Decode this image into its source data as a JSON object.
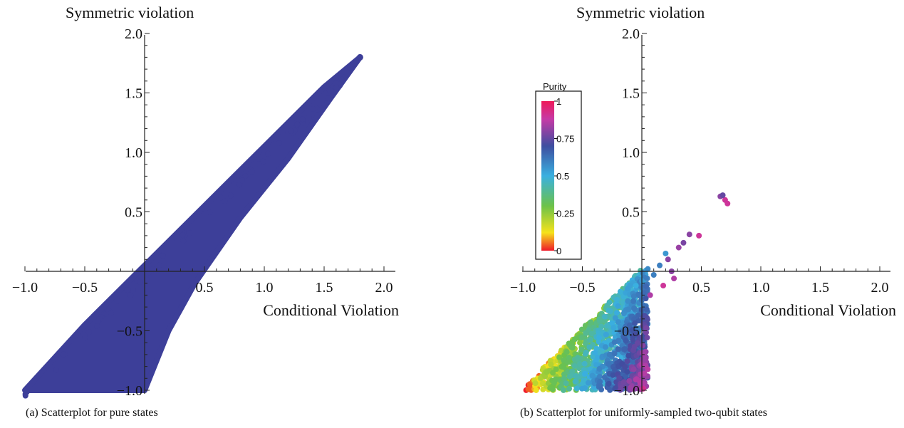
{
  "chart_data": [
    {
      "type": "scatter",
      "caption": "(a) Scatterplot for pure states",
      "xlabel": "Conditional Violation",
      "ylabel": "Symmetric violation",
      "xlim": [
        -1.0,
        2.0
      ],
      "ylim": [
        -1.0,
        2.0
      ],
      "xticks": [
        "−1.0",
        "−0.5",
        "0.5",
        "1.0",
        "1.5",
        "2.0"
      ],
      "yticks": [
        "−1.0",
        "−0.5",
        "0.5",
        "1.0",
        "1.5",
        "2.0"
      ],
      "point_color": "#3d3f99",
      "region": {
        "description_points_boundary": [
          [
            -1.0,
            -1.0
          ],
          [
            -0.95,
            -1.0
          ],
          [
            0.0,
            -1.0
          ],
          [
            0.2,
            -0.5
          ],
          [
            0.42,
            -0.1
          ],
          [
            0.8,
            0.45
          ],
          [
            1.2,
            0.95
          ],
          [
            1.55,
            1.45
          ],
          [
            1.8,
            1.8
          ],
          [
            1.5,
            1.55
          ],
          [
            1.0,
            1.05
          ],
          [
            0.5,
            0.55
          ],
          [
            0.0,
            0.05
          ],
          [
            -0.5,
            -0.45
          ],
          [
            -1.0,
            -1.0
          ]
        ]
      },
      "outliers": [
        [
          1.72,
          1.72
        ],
        [
          1.8,
          1.8
        ],
        [
          1.6,
          1.58
        ],
        [
          1.55,
          1.52
        ]
      ]
    },
    {
      "type": "scatter",
      "caption": "(b) Scatterplot for uniformly-sampled two-qubit states",
      "xlabel": "Conditional Violation",
      "ylabel": "Symmetric violation",
      "xlim": [
        -1.0,
        2.0
      ],
      "ylim": [
        -1.0,
        2.0
      ],
      "xticks": [
        "−1.0",
        "−0.5",
        "0.5",
        "1.0",
        "1.5",
        "2.0"
      ],
      "yticks": [
        "−1.0",
        "−0.5",
        "0.5",
        "1.0",
        "1.5",
        "2.0"
      ],
      "colorbar": {
        "title": "Purity",
        "ticks": [
          "1",
          "0.75",
          "0.5",
          "0.25",
          "0"
        ],
        "colors": [
          "#ee1a2a",
          "#f6e21b",
          "#6cc24a",
          "#3ab0e0",
          "#3e4ea0",
          "#c63aa6",
          "#ee1a5a"
        ]
      },
      "sample_points": [
        [
          0.66,
          0.63,
          0.8
        ],
        [
          0.7,
          0.6,
          0.9
        ],
        [
          0.68,
          0.64,
          0.75
        ],
        [
          0.72,
          0.57,
          0.9
        ],
        [
          0.4,
          0.31,
          0.8
        ],
        [
          0.48,
          0.3,
          0.9
        ],
        [
          0.35,
          0.24,
          0.78
        ],
        [
          0.31,
          0.2,
          0.82
        ],
        [
          0.2,
          0.15,
          0.55
        ],
        [
          0.22,
          0.1,
          0.8
        ],
        [
          0.15,
          0.05,
          0.6
        ],
        [
          0.25,
          0.0,
          0.8
        ],
        [
          0.27,
          -0.06,
          0.85
        ],
        [
          0.18,
          -0.12,
          0.9
        ],
        [
          0.1,
          -0.03,
          0.6
        ],
        [
          0.05,
          0.02,
          0.58
        ],
        [
          0.07,
          -0.2,
          0.85
        ],
        [
          0.0,
          -0.08,
          0.55
        ],
        [
          -0.05,
          -0.12,
          0.5
        ]
      ]
    }
  ]
}
